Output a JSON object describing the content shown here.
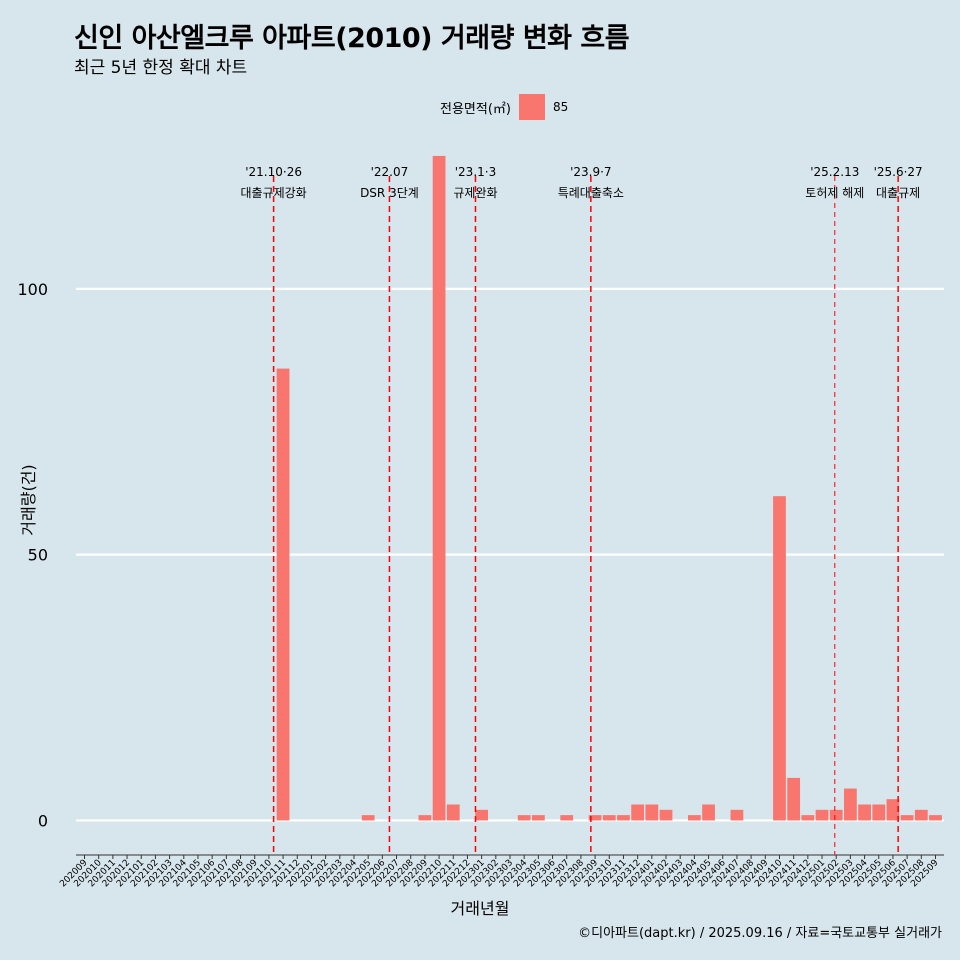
{
  "chart_data": {
    "type": "bar",
    "title": "신인 아산엘크루 아파트(2010) 거래량 변화 흐름",
    "subtitle": "최근 5년 한정 확대 차트",
    "xlabel": "거래년월",
    "ylabel": "거래량(건)",
    "ylim": [
      -6.5,
      128
    ],
    "yticks": [
      0,
      50,
      100
    ],
    "grid": "horizontal",
    "legend": {
      "title": "전용면적(㎡)",
      "position": "top",
      "entries": [
        {
          "name": "85",
          "color": "#f8766d"
        }
      ]
    },
    "series": [
      {
        "name": "85",
        "color": "#f8766d",
        "categories": [
          "202009",
          "202010",
          "202011",
          "202012",
          "202101",
          "202102",
          "202103",
          "202104",
          "202105",
          "202106",
          "202107",
          "202108",
          "202109",
          "202110",
          "202111",
          "202112",
          "202201",
          "202202",
          "202203",
          "202204",
          "202205",
          "202206",
          "202207",
          "202208",
          "202209",
          "202210",
          "202211",
          "202212",
          "202301",
          "202302",
          "202303",
          "202304",
          "202305",
          "202306",
          "202307",
          "202308",
          "202309",
          "202310",
          "202311",
          "202312",
          "202401",
          "202402",
          "202403",
          "202404",
          "202405",
          "202406",
          "202407",
          "202408",
          "202409",
          "202410",
          "202411",
          "202412",
          "202501",
          "202502",
          "202503",
          "202504",
          "202505",
          "202506",
          "202507",
          "202508",
          "202509"
        ],
        "values": [
          0,
          0,
          0,
          0,
          0,
          0,
          0,
          0,
          0,
          0,
          0,
          0,
          0,
          0,
          85,
          0,
          0,
          0,
          0,
          0,
          1,
          0,
          0,
          0,
          1,
          125,
          3,
          0,
          2,
          0,
          0,
          1,
          1,
          0,
          1,
          0,
          1,
          1,
          1,
          3,
          3,
          2,
          0,
          1,
          3,
          0,
          2,
          0,
          0,
          61,
          8,
          1,
          2,
          2,
          6,
          3,
          3,
          4,
          1,
          2,
          1
        ]
      }
    ],
    "tick_labels": [
      "202009",
      "202010",
      "202011",
      "202012",
      "202101",
      "202102",
      "202103",
      "202104",
      "202105",
      "202106",
      "202107",
      "202108",
      "202109",
      "202110",
      "202111",
      "202112",
      "202201",
      "202202",
      "202203",
      "202204",
      "202205",
      "202206",
      "202207",
      "202208",
      "202209",
      "202210",
      "202211",
      "202212",
      "202301",
      "202302",
      "202303",
      "202304",
      "202305",
      "202306",
      "202307",
      "202308",
      "202309",
      "202310",
      "202311",
      "202312",
      "202401",
      "202402",
      "202403",
      "202404",
      "202405",
      "202406",
      "202407",
      "202408",
      "202409",
      "202410",
      "202411",
      "202412",
      "202501",
      "202502",
      "202503",
      "202504",
      "202505",
      "202506",
      "202507",
      "202508",
      "202509"
    ],
    "annotations": [
      {
        "x": "2021-10-26",
        "line1": "'21.10·26",
        "line2": "대출규제강화"
      },
      {
        "x": "2022-07-01",
        "line1": "'22.07",
        "line2": "DSR 3단계"
      },
      {
        "x": "2023-01-03",
        "line1": "'23.1·3",
        "line2": "규제완화"
      },
      {
        "x": "2023-09-07",
        "line1": "'23.9·7",
        "line2": "특례대출축소"
      },
      {
        "x": "2025-02-13",
        "line1": "'25.2.13",
        "line2": "토허제 해제"
      },
      {
        "x": "2025-06-27",
        "line1": "'25.6·27",
        "line2": "대출규제"
      }
    ]
  },
  "footer": "©디아파트(dapt.kr) / 2025.09.16 / 자료=국토교통부 실거래가"
}
